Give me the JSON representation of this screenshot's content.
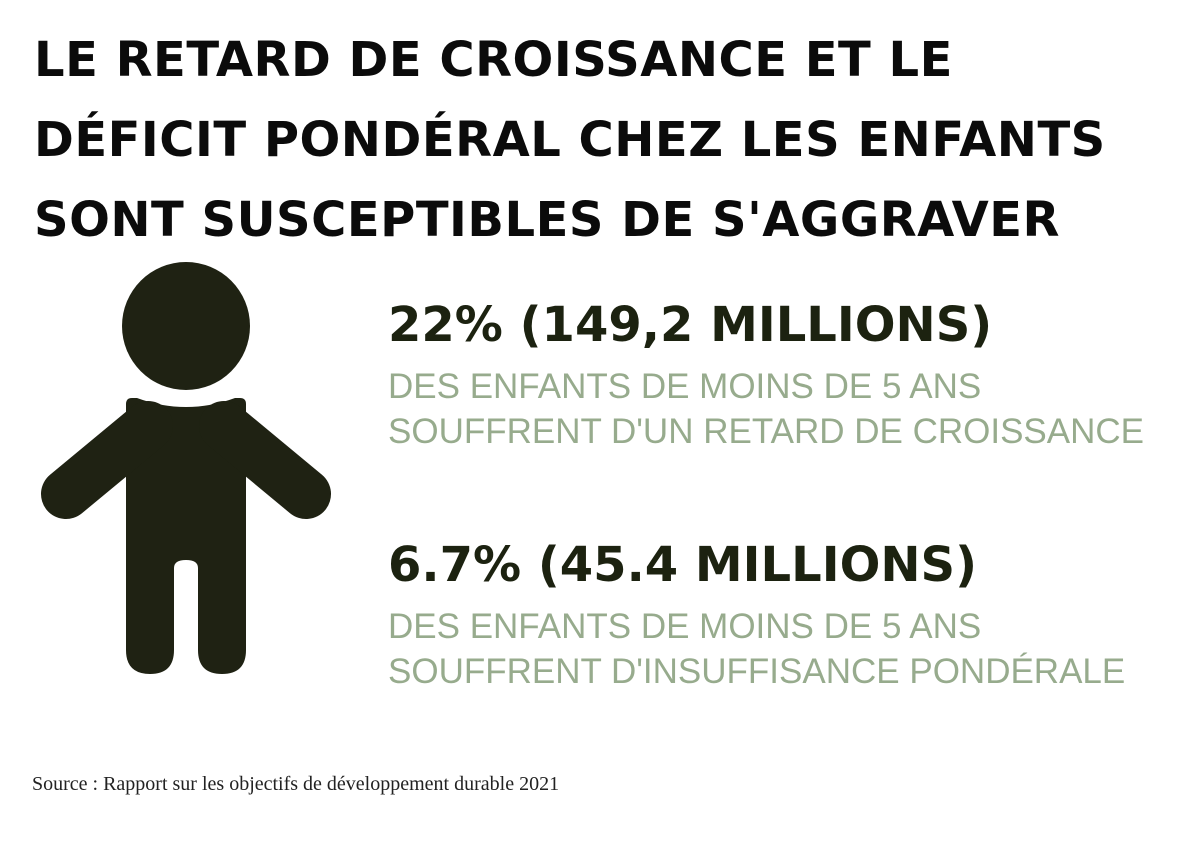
{
  "headline": {
    "lines": [
      "LE RETARD DE CROISSANCE ET LE",
      "DÉFICIT PONDÉRAL CHEZ LES ENFANTS",
      "SONT SUSCEPTIBLES DE S'AGGRAVER"
    ]
  },
  "figure": {
    "icon": "child-icon",
    "color": "#1f2213"
  },
  "stats": [
    {
      "value": "22% (149,2 MILLIONS)",
      "desc_lines": [
        "DES ENFANTS DE MOINS DE 5 ANS",
        "SOUFFRENT D'UN RETARD DE CROISSANCE"
      ]
    },
    {
      "value": "6.7% (45.4 MILLIONS)",
      "desc_lines": [
        "DES ENFANTS DE MOINS DE 5 ANS",
        "SOUFFRENT D'INSUFFISANCE PONDÉRALE"
      ]
    }
  ],
  "source": "Source : Rapport sur les objectifs de développement durable 2021",
  "colors": {
    "headline": "#0b0b0b",
    "stat_value": "#1c2210",
    "stat_desc": "#97ab8d",
    "figure": "#1f2213"
  }
}
